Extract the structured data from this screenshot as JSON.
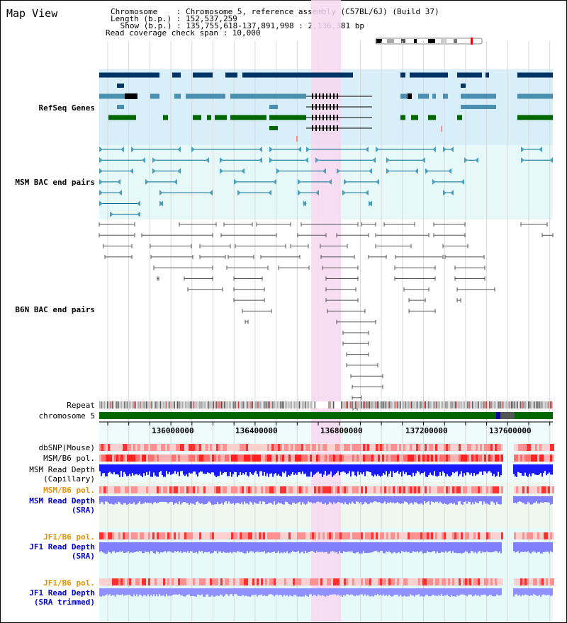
{
  "header": {
    "title": "Map View",
    "chromosome_line": "Chromosome    : Chromosome 5, reference assembly (C57BL/6J) (Build 37)",
    "length_line": "Length (b.p.) : 152,537,259",
    "show_line": " Show (b.p.) : 135,755,618-137,891,998 : 2,136,381 bp",
    "coverage_line": "Read coverage check span : 10,000"
  },
  "tracks": {
    "refseq": {
      "label": "RefSeq Genes",
      "color": "#0000cc"
    },
    "msm_bac": {
      "label": "MSM BAC end pairs",
      "color": "#006080"
    },
    "b6n_bac": {
      "label": "B6N BAC end pairs",
      "color": "#404040"
    },
    "repeat": {
      "label": "Repeat"
    },
    "chromosome": {
      "label": "chromosome 5"
    },
    "dbsnp": {
      "label": "dbSNP(Mouse)"
    },
    "msm_b6_pol_cap": {
      "label": "MSM/B6 pol."
    },
    "msm_depth_cap": {
      "label1": "MSM Read Depth",
      "label2": "(Capillary)"
    },
    "msm_b6_pol_sra": {
      "label": "MSM/B6 pol.",
      "color": "#e69500"
    },
    "msm_depth_sra": {
      "label1": "MSM Read Depth",
      "label2": "(SRA)",
      "color": "#0000cc"
    },
    "jf1_b6_pol": {
      "label": "JF1/B6 pol.",
      "color": "#e69500"
    },
    "jf1_depth_sra": {
      "label1": "JF1 Read Depth",
      "label2": "(SRA)",
      "color": "#0000cc"
    },
    "jf1_b6_pol_trim": {
      "label": "JF1/B6 pol.",
      "color": "#e69500"
    },
    "jf1_depth_trim": {
      "label1": "JF1 Read Depth",
      "label2": "(SRA trimmed)",
      "color": "#0000cc"
    }
  },
  "axis": {
    "ticks": [
      "136000000",
      "136400000",
      "136800000",
      "137200000",
      "137600000"
    ]
  },
  "colors": {
    "highlight": "#f8d8f0",
    "refseq_bg": "#d8eef8",
    "msm_bg": "#e6f8f8",
    "gene_dark": "#003366",
    "gene_mid": "#4a8fb0",
    "gene_green": "#006600",
    "depth_blue": "#1a1aff",
    "depth_light": "#8080ff",
    "pol_red": "#ff6060"
  }
}
